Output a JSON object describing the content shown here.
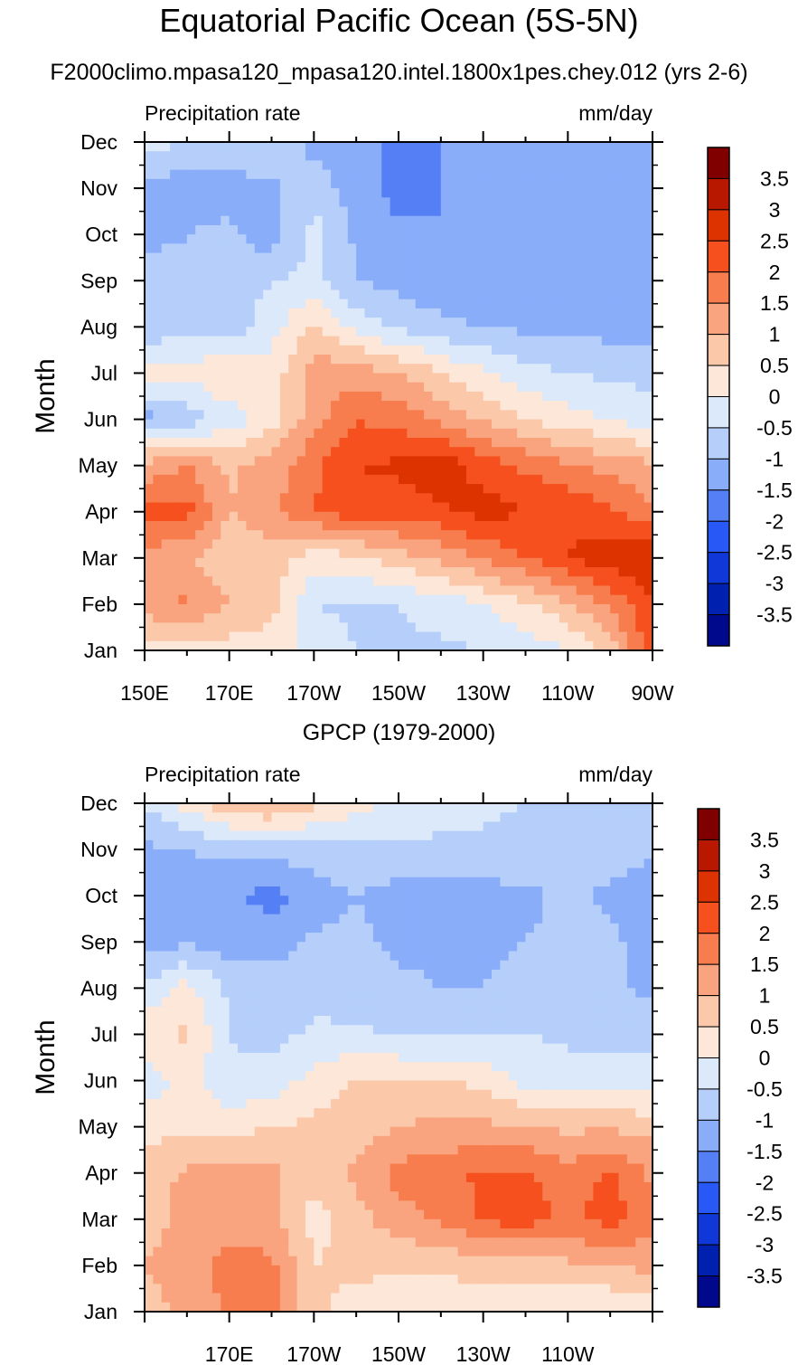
{
  "figure_title": "Equatorial Pacific Ocean (5S-5N)",
  "panels": [
    {
      "subtitle": "F2000climo.mpasa120_mpasa120.intel.1800x1pes.chey.012 (yrs 2-6)",
      "left_label": "Precipitation rate",
      "right_label": "mm/day",
      "ylabel": "Month"
    },
    {
      "subtitle": "GPCP (1979-2000)",
      "left_label": "Precipitation rate",
      "right_label": "mm/day",
      "ylabel": "Month"
    }
  ],
  "colorbar": {
    "labels": [
      "3.5",
      "3",
      "2.5",
      "2",
      "1.5",
      "1",
      "0.5",
      "0",
      "-0.5",
      "-1",
      "-1.5",
      "-2",
      "-2.5",
      "-3",
      "-3.5"
    ],
    "colors": [
      "#800000",
      "#b81800",
      "#dd3300",
      "#f5501e",
      "#f77d4e",
      "#f9a47f",
      "#fbc8aa",
      "#fde7d8",
      "#dbe9fa",
      "#b5cffa",
      "#8aadfa",
      "#5580f5",
      "#2858f5",
      "#1038d8",
      "#0020b0",
      "#00088c"
    ]
  },
  "chart_data": [
    {
      "type": "heatmap",
      "title": "F2000climo.mpasa120_mpasa120.intel.1800x1pes.chey.012 (yrs 2-6)",
      "xlabel": "",
      "ylabel": "Month",
      "xlim": [
        150,
        270
      ],
      "x_tick_values": [
        150,
        170,
        190,
        210,
        230,
        250,
        270
      ],
      "x_tick_labels": [
        "150E",
        "170E",
        "170W",
        "150W",
        "130W",
        "110W",
        "90W"
      ],
      "x_grid": [
        150,
        160,
        170,
        180,
        190,
        200,
        210,
        220,
        230,
        240,
        250,
        260,
        270
      ],
      "months": [
        "Jan",
        "Feb",
        "Mar",
        "Apr",
        "May",
        "Jun",
        "Jul",
        "Aug",
        "Sep",
        "Oct",
        "Nov",
        "Dec"
      ],
      "values": [
        [
          0.3,
          0.2,
          0.3,
          0.2,
          -0.2,
          -0.5,
          -0.6,
          -0.6,
          -0.5,
          -0.3,
          0.0,
          0.6,
          2.5
        ],
        [
          1.2,
          1.6,
          1.0,
          0.7,
          -0.5,
          -0.6,
          -0.5,
          -0.3,
          0.0,
          0.4,
          0.9,
          1.6,
          2.4
        ],
        [
          1.3,
          1.1,
          0.5,
          0.8,
          0.2,
          0.4,
          0.8,
          1.1,
          1.6,
          2.0,
          2.5,
          2.8,
          3.0
        ],
        [
          2.1,
          2.2,
          1.0,
          1.4,
          2.0,
          2.3,
          2.2,
          2.4,
          2.7,
          2.5,
          2.4,
          2.1,
          1.6
        ],
        [
          1.2,
          1.5,
          0.9,
          1.2,
          1.9,
          2.5,
          2.6,
          2.8,
          2.3,
          1.9,
          1.6,
          1.3,
          1.1
        ],
        [
          -1.2,
          -0.8,
          -0.3,
          0.3,
          1.3,
          2.0,
          1.8,
          1.4,
          0.9,
          0.5,
          0.2,
          0.0,
          -0.3
        ],
        [
          0.3,
          0.1,
          0.6,
          0.2,
          1.3,
          1.3,
          1.0,
          0.5,
          0.1,
          -0.3,
          -0.5,
          -0.6,
          -0.7
        ],
        [
          -1.0,
          -0.6,
          -0.9,
          -0.2,
          0.6,
          -0.2,
          -0.6,
          -0.9,
          -1.0,
          -1.1,
          -1.1,
          -1.2,
          -1.2
        ],
        [
          -0.6,
          -0.9,
          -0.8,
          -0.5,
          -0.4,
          -1.0,
          -1.2,
          -1.3,
          -1.4,
          -1.3,
          -1.3,
          -1.3,
          -1.3
        ],
        [
          -1.2,
          -1.0,
          -0.9,
          -1.3,
          -0.3,
          -1.1,
          -1.4,
          -1.5,
          -1.4,
          -1.3,
          -1.3,
          -1.3,
          -1.3
        ],
        [
          -1.3,
          -1.2,
          -1.2,
          -1.1,
          -0.7,
          -1.3,
          -1.7,
          -1.5,
          -1.3,
          -1.3,
          -1.3,
          -1.3,
          -1.5
        ],
        [
          -0.2,
          -0.6,
          -0.7,
          -0.5,
          -1.2,
          -1.3,
          -1.6,
          -1.5,
          -1.3,
          -1.3,
          -1.3,
          -1.3,
          -1.2
        ]
      ]
    },
    {
      "type": "heatmap",
      "title": "GPCP (1979-2000)",
      "xlabel": "",
      "ylabel": "Month",
      "xlim": [
        150,
        270
      ],
      "x_tick_values": [
        170,
        190,
        210,
        230,
        250
      ],
      "x_tick_labels": [
        "170E",
        "170W",
        "150W",
        "130W",
        "110W"
      ],
      "x_grid": [
        150,
        160,
        170,
        180,
        190,
        200,
        210,
        220,
        230,
        240,
        250,
        260,
        270
      ],
      "months": [
        "Jan",
        "Feb",
        "Mar",
        "Apr",
        "May",
        "Jun",
        "Jul",
        "Aug",
        "Sep",
        "Oct",
        "Nov",
        "Dec"
      ],
      "values": [
        [
          0.8,
          1.1,
          1.6,
          1.9,
          0.6,
          0.3,
          0.2,
          0.2,
          0.1,
          0.0,
          0.0,
          0.0,
          0.0
        ],
        [
          1.0,
          1.3,
          1.7,
          1.6,
          0.5,
          0.6,
          0.6,
          0.6,
          0.7,
          0.8,
          0.9,
          1.0,
          1.2
        ],
        [
          0.7,
          1.2,
          1.3,
          1.2,
          0.3,
          0.8,
          1.3,
          1.6,
          2.1,
          2.2,
          1.9,
          2.2,
          1.7
        ],
        [
          0.7,
          1.1,
          1.3,
          1.1,
          0.7,
          1.1,
          1.7,
          1.8,
          2.1,
          2.1,
          1.7,
          2.1,
          1.4
        ],
        [
          0.3,
          0.4,
          0.3,
          0.5,
          0.6,
          0.8,
          1.0,
          1.1,
          1.1,
          1.0,
          0.9,
          0.9,
          0.8
        ],
        [
          -0.3,
          0.2,
          -0.4,
          -0.3,
          0.2,
          0.5,
          0.6,
          0.5,
          0.4,
          -0.2,
          -0.3,
          -0.3,
          -0.3
        ],
        [
          0.4,
          0.6,
          -0.5,
          -0.7,
          -0.4,
          -0.4,
          -0.6,
          -0.6,
          -0.6,
          -0.5,
          -0.6,
          -0.7,
          -0.7
        ],
        [
          -0.4,
          0.2,
          -0.6,
          -0.8,
          -0.7,
          -0.8,
          -0.9,
          -1.0,
          -1.0,
          -0.9,
          -0.8,
          -0.9,
          -1.1
        ],
        [
          -1.3,
          -1.1,
          -1.3,
          -1.2,
          -0.9,
          -0.9,
          -1.1,
          -1.1,
          -1.1,
          -1.0,
          -0.9,
          -0.9,
          -1.2
        ],
        [
          -1.3,
          -1.2,
          -1.4,
          -1.7,
          -1.3,
          -1.0,
          -1.2,
          -1.3,
          -1.2,
          -1.1,
          -0.9,
          -1.1,
          -1.3
        ],
        [
          -1.1,
          -1.0,
          -0.9,
          -0.8,
          -0.7,
          -0.6,
          -0.6,
          -0.6,
          -0.6,
          -0.7,
          -0.6,
          -0.8,
          -0.9
        ],
        [
          -0.5,
          0.2,
          0.9,
          1.1,
          0.6,
          0.2,
          -0.1,
          -0.3,
          -0.4,
          -0.5,
          -0.5,
          -0.5,
          -0.5
        ]
      ]
    }
  ]
}
